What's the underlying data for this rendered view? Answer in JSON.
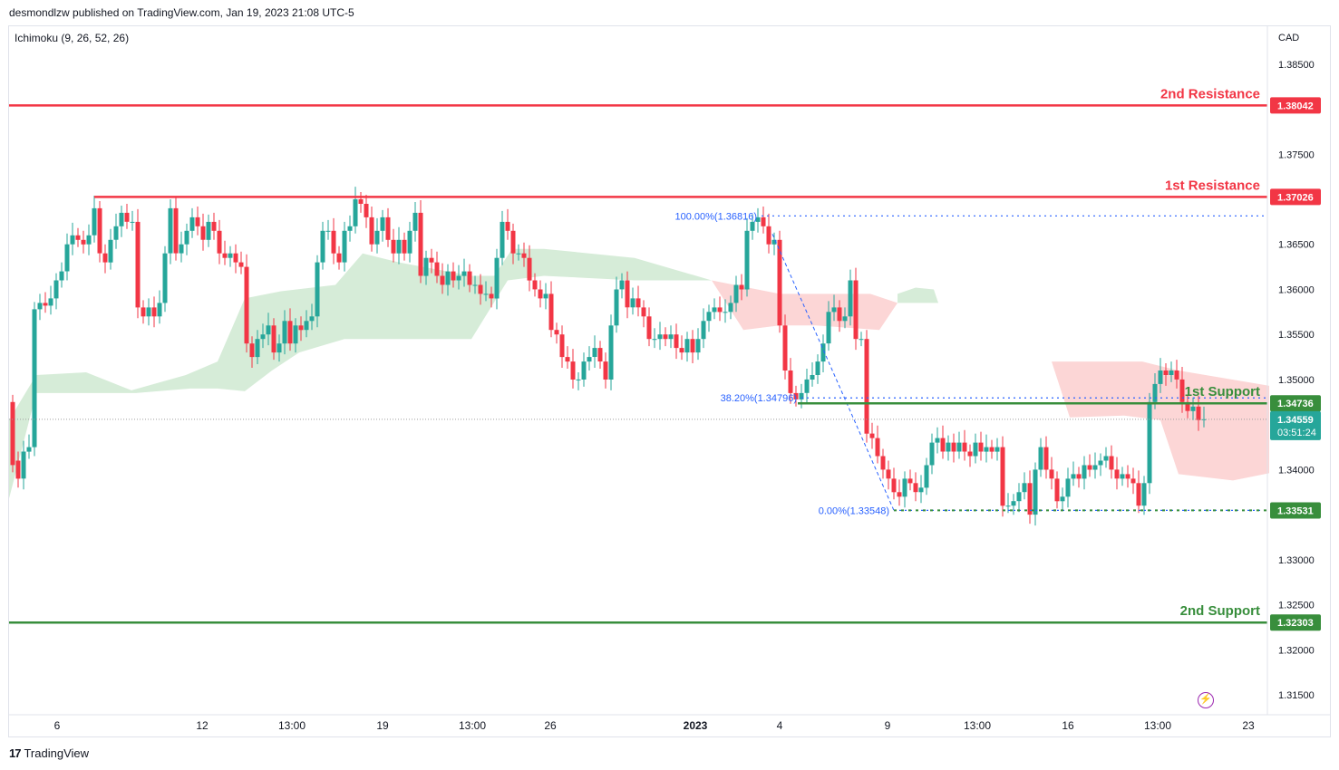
{
  "header": {
    "publisher": "desmondlzw published on TradingView.com, Jan 19, 2023 21:08 UTC-5",
    "indicator": "Ichimoku (9, 26, 52, 26)"
  },
  "footer": {
    "logo_mark": "17",
    "logo_text": "TradingView"
  },
  "icons": {
    "lightning": "lightning-icon"
  },
  "chart_data": {
    "type": "candlestick",
    "currency": "CAD",
    "ylim": [
      1.3128,
      1.3892
    ],
    "y_ticks": [
      "1.38500",
      "1.37500",
      "1.36500",
      "1.36000",
      "1.35500",
      "1.35000",
      "1.34000",
      "1.33000",
      "1.32500",
      "1.32000",
      "1.31500"
    ],
    "x_ticks": [
      "6",
      "12",
      "13:00",
      "19",
      "13:00",
      "26",
      "2023",
      "4",
      "9",
      "13:00",
      "16",
      "13:00",
      "23"
    ],
    "levels": [
      {
        "name": "2nd Resistance",
        "value": 1.38042,
        "label": "1.38042",
        "color": "#f23645"
      },
      {
        "name": "1st Resistance",
        "value": 1.37026,
        "label": "1.37026",
        "color": "#f23645"
      },
      {
        "name": "1st Support",
        "value": 1.34736,
        "label": "1.34736",
        "color": "#388e3c"
      },
      {
        "name": "2nd Support",
        "value": 1.32303,
        "label": "1.32303",
        "color": "#388e3c"
      }
    ],
    "fibonacci": [
      {
        "label": "100.00%(1.36816)",
        "value": 1.36816
      },
      {
        "label": "38.20%(1.34796)",
        "value": 1.34796
      },
      {
        "label": "0.00%(1.33548)",
        "value": 1.33548
      }
    ],
    "current_price": {
      "label": "1.34559",
      "value": 1.34559,
      "countdown": "03:51:24",
      "color": "#26a69a"
    },
    "second_low_label": "1.33531",
    "colors": {
      "up": "#26a69a",
      "down": "#f23645",
      "cloud_bull": "#d6ecd8",
      "cloud_bear": "#fcd6d6",
      "fib": "#2962ff"
    }
  }
}
